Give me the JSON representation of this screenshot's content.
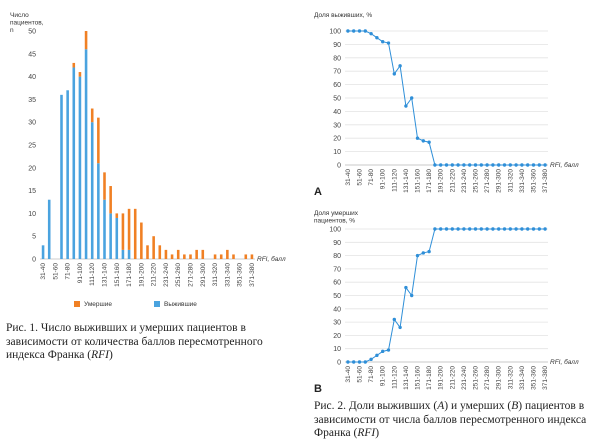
{
  "fig1": {
    "caption_prefix": "Рис. 1. Число выживших и умерших пациентов в зависимости от количества баллов пересмотренного индекса Франка (",
    "caption_em": "RFI",
    "caption_suffix": ")"
  },
  "fig2": {
    "caption_prefix": "Рис. 2. Доли выживших (",
    "caption_a": "A",
    "caption_mid": ") и умерших (",
    "caption_b": "B",
    "caption_mid2": ") пациентов в зависимости от числа баллов пересмотренного индекса Франка (",
    "caption_em": "RFI",
    "caption_suffix": ")"
  },
  "chart_data": [
    {
      "type": "bar",
      "ylabel": "Число пациентов, n",
      "xlabel": "RFI, балл",
      "ylim": [
        0,
        50
      ],
      "yticks": [
        0,
        5,
        10,
        15,
        20,
        25,
        30,
        35,
        40,
        45,
        50
      ],
      "categories": [
        "31-40",
        "41-50",
        "51-60",
        "61-70",
        "71-80",
        "81-90",
        "91-100",
        "101-110",
        "111-120",
        "121-130",
        "131-140",
        "141-150",
        "151-160",
        "161-170",
        "171-180",
        "181-190",
        "191-200",
        "201-210",
        "211-220",
        "221-230",
        "231-240",
        "241-250",
        "251-260",
        "261-270",
        "271-280",
        "281-290",
        "291-300",
        "301-310",
        "311-320",
        "321-330",
        "331-340",
        "341-350",
        "351-360",
        "361-370",
        "371-380"
      ],
      "tick_labels": [
        "31-40",
        "51-60",
        "71-80",
        "91-100",
        "111-120",
        "131-140",
        "151-160",
        "171-180",
        "191-200",
        "211-220",
        "231-240",
        "251-260",
        "271-280",
        "291-300",
        "311-320",
        "331-340",
        "351-360",
        "371-380"
      ],
      "stacked": true,
      "series": [
        {
          "name": "Выжившие",
          "color": "#4aa3df",
          "values": [
            3,
            13,
            0,
            36,
            37,
            42,
            40,
            46,
            30,
            21,
            13,
            10,
            9,
            2,
            2,
            0,
            0,
            0,
            0,
            0,
            0,
            0,
            0,
            0,
            0,
            0,
            0,
            0,
            0,
            0,
            0,
            0,
            0,
            0,
            0
          ]
        },
        {
          "name": "Умершие",
          "color": "#f08024",
          "values": [
            0,
            0,
            0,
            0,
            0,
            1,
            1,
            4,
            3,
            10,
            6,
            6,
            1,
            8,
            9,
            11,
            8,
            3,
            5,
            3,
            2,
            1,
            2,
            1,
            1,
            2,
            2,
            0,
            1,
            1,
            2,
            1,
            0,
            1,
            1
          ]
        }
      ],
      "legend_position": "bottom"
    },
    {
      "type": "line",
      "panel": "A",
      "ylabel": "Доля выживших, %",
      "xlabel": "RFI, балл",
      "ylim": [
        0,
        100
      ],
      "yticks": [
        0,
        10,
        20,
        30,
        40,
        50,
        60,
        70,
        80,
        90,
        100
      ],
      "color": "#2f8fd8",
      "categories": [
        "31-40",
        "41-50",
        "51-60",
        "61-70",
        "71-80",
        "81-90",
        "91-100",
        "101-110",
        "111-120",
        "121-130",
        "131-140",
        "141-150",
        "151-160",
        "161-170",
        "171-180",
        "181-190",
        "191-200",
        "201-210",
        "211-220",
        "221-230",
        "231-240",
        "241-250",
        "251-260",
        "261-270",
        "271-280",
        "281-290",
        "291-300",
        "301-310",
        "311-320",
        "321-330",
        "331-340",
        "341-350",
        "351-360",
        "361-370",
        "371-380"
      ],
      "tick_labels": [
        "31-40",
        "51-60",
        "71-80",
        "91-100",
        "111-120",
        "131-140",
        "151-160",
        "171-180",
        "191-200",
        "211-220",
        "231-240",
        "251-260",
        "271-280",
        "291-300",
        "311-320",
        "331-340",
        "351-360",
        "371-380"
      ],
      "values": [
        100,
        100,
        100,
        100,
        98,
        95,
        92,
        91,
        68,
        74,
        44,
        50,
        20,
        18,
        17,
        0,
        0,
        0,
        0,
        0,
        0,
        0,
        0,
        0,
        0,
        0,
        0,
        0,
        0,
        0,
        0,
        0,
        0,
        0,
        0
      ]
    },
    {
      "type": "line",
      "panel": "B",
      "ylabel": "Доля умерших пациентов, %",
      "xlabel": "RFI, балл",
      "ylim": [
        0,
        100
      ],
      "yticks": [
        0,
        10,
        20,
        30,
        40,
        50,
        60,
        70,
        80,
        90,
        100
      ],
      "color": "#2f8fd8",
      "categories": [
        "31-40",
        "41-50",
        "51-60",
        "61-70",
        "71-80",
        "81-90",
        "91-100",
        "101-110",
        "111-120",
        "121-130",
        "131-140",
        "141-150",
        "151-160",
        "161-170",
        "171-180",
        "181-190",
        "191-200",
        "201-210",
        "211-220",
        "221-230",
        "231-240",
        "241-250",
        "251-260",
        "261-270",
        "271-280",
        "281-290",
        "291-300",
        "301-310",
        "311-320",
        "321-330",
        "331-340",
        "341-350",
        "351-360",
        "361-370",
        "371-380"
      ],
      "tick_labels": [
        "31-40",
        "51-60",
        "71-80",
        "91-100",
        "111-120",
        "131-140",
        "151-160",
        "171-180",
        "191-200",
        "211-220",
        "231-240",
        "251-260",
        "271-280",
        "291-300",
        "311-320",
        "331-340",
        "351-360",
        "371-380"
      ],
      "values": [
        0,
        0,
        0,
        0,
        2,
        5,
        8,
        9,
        32,
        26,
        56,
        50,
        80,
        82,
        83,
        100,
        100,
        100,
        100,
        100,
        100,
        100,
        100,
        100,
        100,
        100,
        100,
        100,
        100,
        100,
        100,
        100,
        100,
        100,
        100
      ]
    }
  ]
}
